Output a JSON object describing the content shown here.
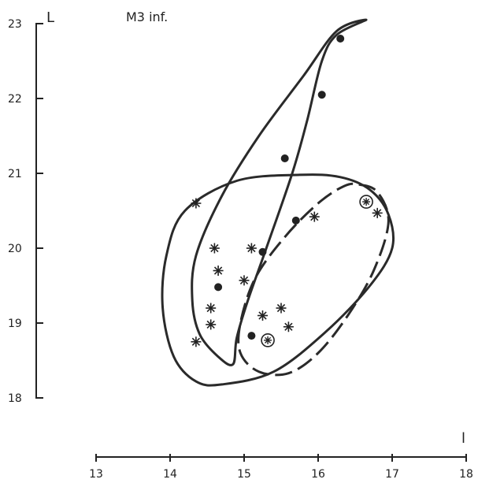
{
  "chart_data": {
    "type": "scatter",
    "title": "M3 inf.",
    "xlabel": "l",
    "ylabel": "L",
    "xlim": [
      13,
      18
    ],
    "ylim": [
      18,
      23
    ],
    "x_ticks": [
      "13",
      "14",
      "15",
      "16",
      "17",
      "18"
    ],
    "y_ticks": [
      "18",
      "19",
      "20",
      "21",
      "22",
      "23"
    ],
    "grid": false,
    "series": [
      {
        "marker": "dot",
        "points": [
          {
            "x": 16.3,
            "y": 22.8
          },
          {
            "x": 16.05,
            "y": 22.05
          },
          {
            "x": 15.55,
            "y": 21.2
          },
          {
            "x": 15.7,
            "y": 20.37
          },
          {
            "x": 15.25,
            "y": 19.95
          },
          {
            "x": 14.65,
            "y": 19.48
          },
          {
            "x": 15.1,
            "y": 18.83
          }
        ]
      },
      {
        "marker": "asterisk",
        "points": [
          {
            "x": 14.35,
            "y": 20.6
          },
          {
            "x": 15.95,
            "y": 20.42
          },
          {
            "x": 16.8,
            "y": 20.47
          },
          {
            "x": 14.6,
            "y": 20.0
          },
          {
            "x": 15.1,
            "y": 20.0
          },
          {
            "x": 14.65,
            "y": 19.7
          },
          {
            "x": 15.0,
            "y": 19.57
          },
          {
            "x": 14.55,
            "y": 19.2
          },
          {
            "x": 15.5,
            "y": 19.2
          },
          {
            "x": 15.25,
            "y": 19.1
          },
          {
            "x": 14.55,
            "y": 18.98
          },
          {
            "x": 15.6,
            "y": 18.95
          },
          {
            "x": 14.35,
            "y": 18.75
          }
        ]
      },
      {
        "marker": "circled-asterisk",
        "points": [
          {
            "x": 16.65,
            "y": 20.62
          },
          {
            "x": 15.32,
            "y": 18.77
          }
        ]
      }
    ],
    "envelopes": [
      {
        "style": "solid",
        "path": [
          [
            16.65,
            23.05
          ],
          [
            16.25,
            22.85
          ],
          [
            16.05,
            22.5
          ],
          [
            15.85,
            21.7
          ],
          [
            15.65,
            21.0
          ],
          [
            15.3,
            20.0
          ],
          [
            15.05,
            19.3
          ],
          [
            14.9,
            18.8
          ],
          [
            14.85,
            18.45
          ],
          [
            14.65,
            18.55
          ],
          [
            14.4,
            18.85
          ],
          [
            14.3,
            19.3
          ],
          [
            14.35,
            19.9
          ],
          [
            14.7,
            20.7
          ],
          [
            15.2,
            21.5
          ],
          [
            15.8,
            22.3
          ],
          [
            16.25,
            22.9
          ],
          [
            16.65,
            23.05
          ]
        ]
      },
      {
        "style": "solid",
        "path": [
          [
            15.75,
            20.98
          ],
          [
            16.3,
            20.95
          ],
          [
            16.7,
            20.78
          ],
          [
            16.95,
            20.45
          ],
          [
            17.0,
            20.0
          ],
          [
            16.7,
            19.5
          ],
          [
            16.1,
            18.88
          ],
          [
            15.4,
            18.35
          ],
          [
            14.7,
            18.18
          ],
          [
            14.35,
            18.22
          ],
          [
            14.05,
            18.55
          ],
          [
            13.9,
            19.2
          ],
          [
            13.95,
            19.9
          ],
          [
            14.2,
            20.5
          ],
          [
            14.9,
            20.9
          ],
          [
            15.75,
            20.98
          ]
        ]
      },
      {
        "style": "dashed",
        "path": [
          [
            16.55,
            20.85
          ],
          [
            16.8,
            20.75
          ],
          [
            16.95,
            20.35
          ],
          [
            16.75,
            19.7
          ],
          [
            16.4,
            19.1
          ],
          [
            16.0,
            18.6
          ],
          [
            15.6,
            18.33
          ],
          [
            15.2,
            18.35
          ],
          [
            14.95,
            18.6
          ],
          [
            14.95,
            19.0
          ],
          [
            15.15,
            19.6
          ],
          [
            15.55,
            20.15
          ],
          [
            16.0,
            20.6
          ],
          [
            16.35,
            20.83
          ],
          [
            16.55,
            20.85
          ]
        ]
      }
    ]
  }
}
